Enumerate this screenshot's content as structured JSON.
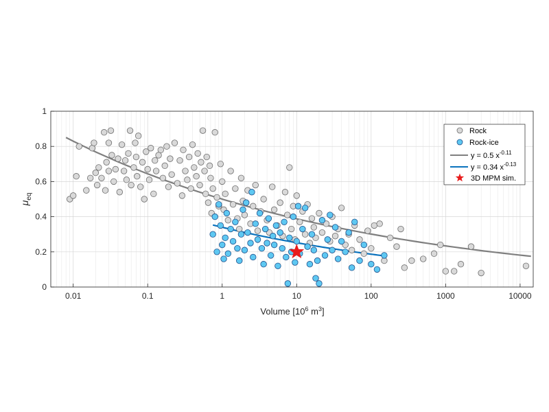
{
  "chart_data": {
    "type": "scatter",
    "x_scale": "log",
    "xlim": [
      0.005,
      15000
    ],
    "ylim": [
      0,
      1
    ],
    "x_ticks": [
      0.01,
      0.1,
      1,
      10,
      100,
      1000,
      10000
    ],
    "x_tick_labels": [
      "0.01",
      "0.1",
      "1",
      "10",
      "100",
      "1000",
      "10000"
    ],
    "y_ticks": [
      0,
      0.2,
      0.4,
      0.6,
      0.8,
      1
    ],
    "y_tick_labels": [
      "0",
      "0.2",
      "0.4",
      "0.6",
      "0.8",
      "1"
    ],
    "xlabel": {
      "text": "Volume [10",
      "sup": "6",
      "tail": " m",
      "sup2": "3",
      "end": "]"
    },
    "ylabel": {
      "main": "μ",
      "sub": "eq"
    },
    "grid": true,
    "legend_position": "top-right",
    "colors": {
      "rock_fill": "#d9d9d9",
      "rock_edge": "#6e6e6e",
      "rockice_fill": "#5ec8f2",
      "rockice_edge": "#1f4f8a",
      "rock_fit": "#7f7f7f",
      "rockice_fit": "#0a72bd",
      "star": "#e81c1c"
    },
    "legend": [
      {
        "label": "Rock",
        "kind": "marker-rock"
      },
      {
        "label": "Rock-ice",
        "kind": "marker-rockice"
      },
      {
        "label": "y = 0.5 x",
        "sup": "-0.11",
        "kind": "line-rock"
      },
      {
        "label": "y = 0.34 x",
        "sup": "-0.13",
        "kind": "line-rockice"
      },
      {
        "label": "3D MPM sim.",
        "kind": "star"
      }
    ],
    "series": [
      {
        "name": "Rock",
        "marker": "circle",
        "points": [
          [
            0.009,
            0.5
          ],
          [
            0.01,
            0.52
          ],
          [
            0.011,
            0.63
          ],
          [
            0.012,
            0.8
          ],
          [
            0.015,
            0.55
          ],
          [
            0.017,
            0.62
          ],
          [
            0.018,
            0.79
          ],
          [
            0.019,
            0.82
          ],
          [
            0.02,
            0.65
          ],
          [
            0.021,
            0.58
          ],
          [
            0.022,
            0.68
          ],
          [
            0.024,
            0.62
          ],
          [
            0.026,
            0.88
          ],
          [
            0.027,
            0.55
          ],
          [
            0.028,
            0.71
          ],
          [
            0.03,
            0.82
          ],
          [
            0.03,
            0.66
          ],
          [
            0.032,
            0.89
          ],
          [
            0.033,
            0.75
          ],
          [
            0.035,
            0.6
          ],
          [
            0.037,
            0.67
          ],
          [
            0.04,
            0.73
          ],
          [
            0.042,
            0.54
          ],
          [
            0.045,
            0.81
          ],
          [
            0.048,
            0.66
          ],
          [
            0.05,
            0.72
          ],
          [
            0.052,
            0.61
          ],
          [
            0.055,
            0.76
          ],
          [
            0.058,
            0.89
          ],
          [
            0.06,
            0.58
          ],
          [
            0.065,
            0.68
          ],
          [
            0.068,
            0.82
          ],
          [
            0.07,
            0.74
          ],
          [
            0.072,
            0.63
          ],
          [
            0.075,
            0.86
          ],
          [
            0.08,
            0.57
          ],
          [
            0.085,
            0.71
          ],
          [
            0.09,
            0.5
          ],
          [
            0.095,
            0.77
          ],
          [
            0.1,
            0.67
          ],
          [
            0.105,
            0.61
          ],
          [
            0.11,
            0.79
          ],
          [
            0.12,
            0.53
          ],
          [
            0.125,
            0.72
          ],
          [
            0.13,
            0.66
          ],
          [
            0.14,
            0.75
          ],
          [
            0.15,
            0.78
          ],
          [
            0.16,
            0.62
          ],
          [
            0.17,
            0.69
          ],
          [
            0.18,
            0.8
          ],
          [
            0.19,
            0.57
          ],
          [
            0.2,
            0.73
          ],
          [
            0.21,
            0.64
          ],
          [
            0.23,
            0.82
          ],
          [
            0.25,
            0.59
          ],
          [
            0.27,
            0.72
          ],
          [
            0.29,
            0.52
          ],
          [
            0.3,
            0.78
          ],
          [
            0.32,
            0.66
          ],
          [
            0.34,
            0.61
          ],
          [
            0.36,
            0.74
          ],
          [
            0.38,
            0.56
          ],
          [
            0.4,
            0.81
          ],
          [
            0.42,
            0.68
          ],
          [
            0.45,
            0.63
          ],
          [
            0.47,
            0.76
          ],
          [
            0.5,
            0.58
          ],
          [
            0.52,
            0.71
          ],
          [
            0.55,
            0.89
          ],
          [
            0.58,
            0.66
          ],
          [
            0.6,
            0.53
          ],
          [
            0.62,
            0.74
          ],
          [
            0.65,
            0.48
          ],
          [
            0.68,
            0.69
          ],
          [
            0.7,
            0.62
          ],
          [
            0.72,
            0.42
          ],
          [
            0.75,
            0.56
          ],
          [
            0.8,
            0.88
          ],
          [
            0.85,
            0.51
          ],
          [
            0.9,
            0.46
          ],
          [
            0.95,
            0.7
          ],
          [
            1.0,
            0.6
          ],
          [
            1.05,
            0.44
          ],
          [
            1.1,
            0.53
          ],
          [
            1.2,
            0.38
          ],
          [
            1.3,
            0.66
          ],
          [
            1.4,
            0.47
          ],
          [
            1.5,
            0.56
          ],
          [
            1.6,
            0.39
          ],
          [
            1.7,
            0.33
          ],
          [
            1.8,
            0.62
          ],
          [
            1.9,
            0.49
          ],
          [
            2.0,
            0.41
          ],
          [
            2.2,
            0.55
          ],
          [
            2.4,
            0.36
          ],
          [
            2.6,
            0.46
          ],
          [
            2.8,
            0.58
          ],
          [
            3.0,
            0.32
          ],
          [
            3.3,
            0.43
          ],
          [
            3.6,
            0.5
          ],
          [
            4.0,
            0.38
          ],
          [
            4.3,
            0.31
          ],
          [
            4.7,
            0.57
          ],
          [
            5.0,
            0.44
          ],
          [
            5.5,
            0.35
          ],
          [
            6.0,
            0.48
          ],
          [
            6.5,
            0.29
          ],
          [
            7.0,
            0.54
          ],
          [
            7.5,
            0.41
          ],
          [
            8.0,
            0.68
          ],
          [
            8.5,
            0.33
          ],
          [
            9.0,
            0.46
          ],
          [
            9.5,
            0.27
          ],
          [
            10.0,
            0.52
          ],
          [
            11.0,
            0.37
          ],
          [
            12.0,
            0.43
          ],
          [
            13.0,
            0.3
          ],
          [
            14.0,
            0.47
          ],
          [
            15.0,
            0.25
          ],
          [
            16.0,
            0.39
          ],
          [
            17.0,
            0.34
          ],
          [
            18.0,
            0.28
          ],
          [
            20.0,
            0.42
          ],
          [
            22.0,
            0.31
          ],
          [
            25.0,
            0.36
          ],
          [
            28.0,
            0.26
          ],
          [
            30.0,
            0.4
          ],
          [
            33.0,
            0.29
          ],
          [
            36.0,
            0.33
          ],
          [
            40.0,
            0.45
          ],
          [
            45.0,
            0.24
          ],
          [
            50.0,
            0.3
          ],
          [
            55.0,
            0.21
          ],
          [
            60.0,
            0.35
          ],
          [
            70.0,
            0.27
          ],
          [
            80.0,
            0.19
          ],
          [
            90.0,
            0.32
          ],
          [
            100.0,
            0.22
          ],
          [
            110.0,
            0.35
          ],
          [
            130.0,
            0.36
          ],
          [
            150.0,
            0.15
          ],
          [
            180.0,
            0.28
          ],
          [
            220.0,
            0.23
          ],
          [
            250.0,
            0.33
          ],
          [
            280.0,
            0.11
          ],
          [
            350.0,
            0.15
          ],
          [
            500.0,
            0.16
          ],
          [
            700.0,
            0.19
          ],
          [
            850.0,
            0.24
          ],
          [
            1000.0,
            0.09
          ],
          [
            1300.0,
            0.09
          ],
          [
            1600.0,
            0.13
          ],
          [
            2200.0,
            0.23
          ],
          [
            3000.0,
            0.08
          ],
          [
            12000.0,
            0.12
          ]
        ]
      },
      {
        "name": "Rock-ice",
        "marker": "circle",
        "points": [
          [
            0.75,
            0.3
          ],
          [
            0.8,
            0.4
          ],
          [
            0.85,
            0.2
          ],
          [
            0.9,
            0.47
          ],
          [
            0.95,
            0.35
          ],
          [
            1.0,
            0.24
          ],
          [
            1.05,
            0.16
          ],
          [
            1.1,
            0.28
          ],
          [
            1.15,
            0.42
          ],
          [
            1.2,
            0.19
          ],
          [
            1.3,
            0.33
          ],
          [
            1.4,
            0.26
          ],
          [
            1.5,
            0.37
          ],
          [
            1.6,
            0.22
          ],
          [
            1.7,
            0.15
          ],
          [
            1.8,
            0.3
          ],
          [
            1.9,
            0.44
          ],
          [
            2.0,
            0.21
          ],
          [
            2.1,
            0.48
          ],
          [
            2.2,
            0.31
          ],
          [
            2.4,
            0.25
          ],
          [
            2.5,
            0.54
          ],
          [
            2.6,
            0.17
          ],
          [
            2.8,
            0.36
          ],
          [
            3.0,
            0.27
          ],
          [
            3.2,
            0.42
          ],
          [
            3.4,
            0.22
          ],
          [
            3.6,
            0.13
          ],
          [
            3.8,
            0.33
          ],
          [
            4.0,
            0.25
          ],
          [
            4.2,
            0.39
          ],
          [
            4.5,
            0.18
          ],
          [
            4.8,
            0.29
          ],
          [
            5.0,
            0.24
          ],
          [
            5.3,
            0.35
          ],
          [
            5.6,
            0.12
          ],
          [
            6.0,
            0.31
          ],
          [
            6.4,
            0.22
          ],
          [
            6.8,
            0.37
          ],
          [
            7.2,
            0.17
          ],
          [
            7.6,
            0.02
          ],
          [
            8.0,
            0.28
          ],
          [
            8.5,
            0.2
          ],
          [
            9.0,
            0.4
          ],
          [
            9.5,
            0.14
          ],
          [
            10.0,
            0.26
          ],
          [
            10.5,
            0.46
          ],
          [
            11.0,
            0.19
          ],
          [
            12.0,
            0.33
          ],
          [
            13.0,
            0.45
          ],
          [
            14.0,
            0.23
          ],
          [
            15.0,
            0.13
          ],
          [
            16.0,
            0.3
          ],
          [
            17.0,
            0.21
          ],
          [
            18.0,
            0.05
          ],
          [
            19.0,
            0.15
          ],
          [
            20.0,
            0.02
          ],
          [
            22.0,
            0.38
          ],
          [
            24.0,
            0.18
          ],
          [
            26.0,
            0.27
          ],
          [
            28.0,
            0.41
          ],
          [
            30.0,
            0.21
          ],
          [
            33.0,
            0.34
          ],
          [
            36.0,
            0.16
          ],
          [
            40.0,
            0.26
          ],
          [
            45.0,
            0.2
          ],
          [
            50.0,
            0.31
          ],
          [
            55.0,
            0.11
          ],
          [
            60.0,
            0.37
          ],
          [
            70.0,
            0.15
          ],
          [
            80.0,
            0.24
          ],
          [
            100.0,
            0.13
          ],
          [
            120.0,
            0.1
          ],
          [
            150.0,
            0.18
          ]
        ]
      },
      {
        "name": "y = 0.5 x^-0.11",
        "type": "line",
        "a": 0.5,
        "b": -0.11,
        "x_range": [
          0.008,
          14000
        ]
      },
      {
        "name": "y = 0.34 x^-0.13",
        "type": "line",
        "a": 0.34,
        "b": -0.13,
        "x_range": [
          0.75,
          160
        ]
      },
      {
        "name": "3D MPM sim.",
        "marker": "star",
        "points": [
          [
            10,
            0.2
          ]
        ]
      }
    ]
  }
}
